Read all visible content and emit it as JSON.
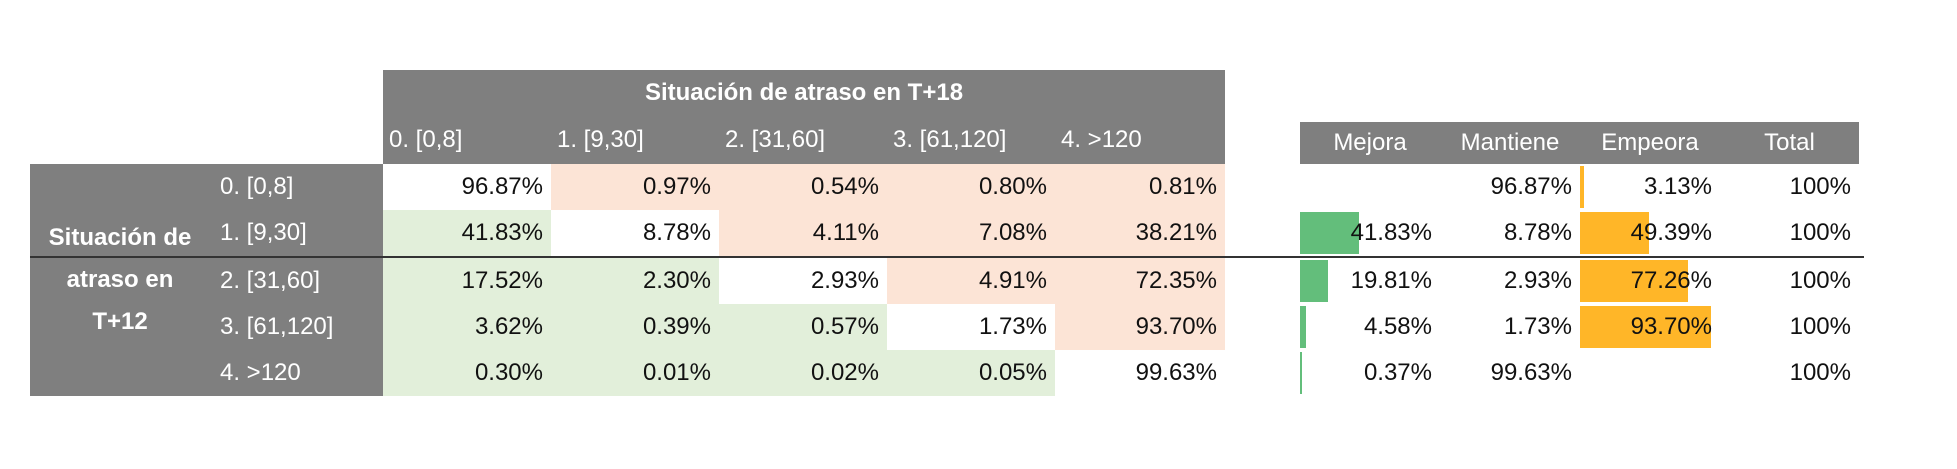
{
  "matrix": {
    "title": "Situación de atraso en T+18",
    "columns": [
      "0. [0,8]",
      "1. [9,30]",
      "2. [31,60]",
      "3. [61,120]",
      "4. >120"
    ],
    "row_group_label": [
      "Situación de",
      "atraso en",
      "T+12"
    ],
    "rows": [
      {
        "label": "0. [0,8]",
        "values": [
          "96.87%",
          "0.97%",
          "0.54%",
          "0.80%",
          "0.81%"
        ]
      },
      {
        "label": "1. [9,30]",
        "values": [
          "41.83%",
          "8.78%",
          "4.11%",
          "7.08%",
          "38.21%"
        ]
      },
      {
        "label": "2. [31,60]",
        "values": [
          "17.52%",
          "2.30%",
          "2.93%",
          "4.91%",
          "72.35%"
        ]
      },
      {
        "label": "3. [61,120]",
        "values": [
          "3.62%",
          "0.39%",
          "0.57%",
          "1.73%",
          "93.70%"
        ]
      },
      {
        "label": "4. >120",
        "values": [
          "0.30%",
          "0.01%",
          "0.02%",
          "0.05%",
          "99.63%"
        ]
      }
    ]
  },
  "summary": {
    "headers": [
      "Mejora",
      "Mantiene",
      "Empeora",
      "Total"
    ],
    "rows": [
      {
        "mejora": "",
        "mantiene": "96.87%",
        "empeora": "3.13%",
        "total": "100%",
        "mejora_fraction": 0,
        "empeora_fraction": 0.0313
      },
      {
        "mejora": "41.83%",
        "mantiene": "8.78%",
        "empeora": "49.39%",
        "total": "100%",
        "mejora_fraction": 0.4183,
        "empeora_fraction": 0.4939
      },
      {
        "mejora": "19.81%",
        "mantiene": "2.93%",
        "empeora": "77.26%",
        "total": "100%",
        "mejora_fraction": 0.1981,
        "empeora_fraction": 0.7726
      },
      {
        "mejora": "4.58%",
        "mantiene": "1.73%",
        "empeora": "93.70%",
        "total": "100%",
        "mejora_fraction": 0.0458,
        "empeora_fraction": 0.937
      },
      {
        "mejora": "0.37%",
        "mantiene": "99.63%",
        "empeora": "",
        "total": "100%",
        "mejora_fraction": 0.0037,
        "empeora_fraction": 0
      }
    ]
  },
  "colors": {
    "header_gray": "#7f7f7f",
    "improve_fill": "#e2efda",
    "worsen_fill": "#fce4d6",
    "improve_bar": "#63be7b",
    "worsen_bar": "#ffb628"
  }
}
